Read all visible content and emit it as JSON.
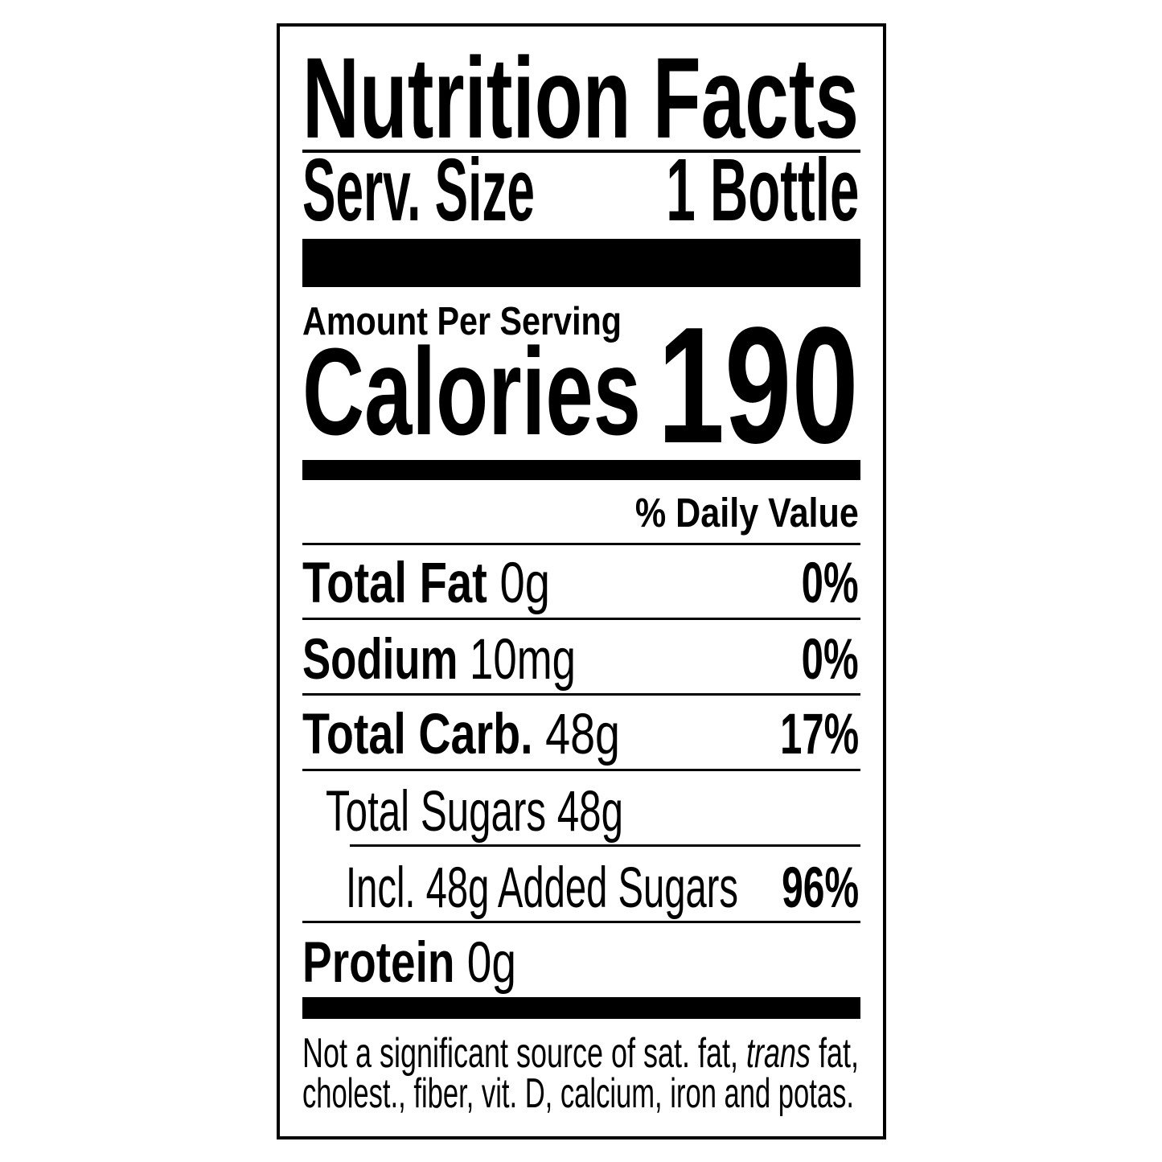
{
  "label": {
    "title": "Nutrition Facts",
    "serving_size_label": "Serv. Size",
    "serving_size_value": "1 Bottle",
    "amount_per_serving": "Amount Per Serving",
    "calories_label": "Calories",
    "calories_value": "190",
    "daily_value_header": "% Daily Value",
    "nutrients": [
      {
        "name": "Total Fat",
        "amount": "0g",
        "dv": "0%"
      },
      {
        "name": "Sodium",
        "amount": "10mg",
        "dv": "0%"
      },
      {
        "name": "Total Carb.",
        "amount": "48g",
        "dv": "17%"
      },
      {
        "name": "Total Sugars 48g"
      },
      {
        "name": "Incl. 48g Added Sugars",
        "dv": "96%"
      },
      {
        "name": "Protein",
        "amount": "0g"
      }
    ],
    "footnote": {
      "line1_pre": "Not a significant source of sat. fat, ",
      "line1_italic": "trans",
      "line1_post": " fat,",
      "line2": "cholest., fiber, vit. D, calcium, iron and potas."
    }
  }
}
